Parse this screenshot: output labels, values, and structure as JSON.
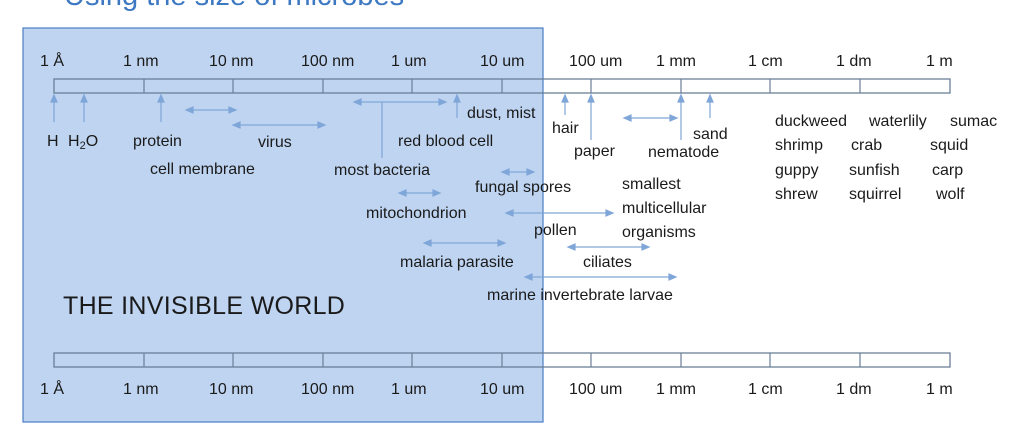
{
  "slide": {
    "title_fragment": "Using the size of microbes",
    "region_label": "THE INVISIBLE WORLD"
  },
  "scale": {
    "ticks": [
      "1 Å",
      "1 nm",
      "10 nm",
      "100 nm",
      "1 um",
      "10 um",
      "100 um",
      "1 mm",
      "1 cm",
      "1 dm",
      "1 m"
    ]
  },
  "labels": {
    "hydrogen": "H",
    "water_base": "H",
    "water_sub": "2",
    "water_tail": "O",
    "protein": "protein",
    "cell_membrane": "cell membrane",
    "virus": "virus",
    "most_bacteria": "most bacteria",
    "red_blood_cell": "red blood cell",
    "dust_mist": "dust, mist",
    "hair": "hair",
    "paper": "paper",
    "fungal_spores": "fungal spores",
    "mitochondrion": "mitochondrion",
    "pollen": "pollen",
    "malaria_parasite": "malaria parasite",
    "ciliates": "ciliates",
    "marine_larvae": "marine invertebrate larvae",
    "smallest_multicellular": [
      "smallest",
      "multicellular",
      "organisms"
    ],
    "sand": "sand",
    "nematode": "nematode"
  },
  "organism_grid": [
    [
      "duckweed",
      "waterlily",
      "sumac"
    ],
    [
      "shrimp",
      "crab",
      "squid"
    ],
    [
      "guppy",
      "sunfish",
      "carp"
    ],
    [
      "shrew",
      "squirrel",
      "wolf"
    ]
  ],
  "colors": {
    "invisible_region": "#b7cff0",
    "invisible_border": "#4a7fc6",
    "arrow": "#7fa6d8",
    "title": "#3d78c2",
    "scale_stroke": "#6a7f98"
  }
}
